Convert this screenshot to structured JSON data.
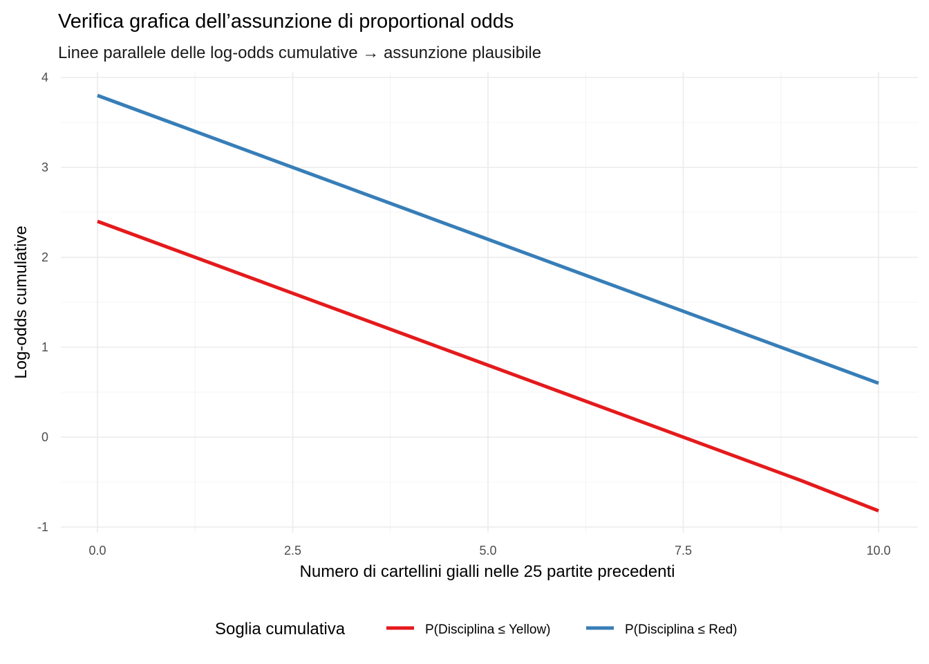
{
  "chart_data": {
    "type": "line",
    "title": "Verifica grafica dell’assunzione di proportional odds",
    "subtitle": "Linee parallele delle log-odds cumulative → assunzione plausibile",
    "xlabel": "Numero di cartellini gialli nelle 25 partite precedenti",
    "ylabel": "Log-odds cumulative",
    "xlim": [
      -0.45,
      10.5
    ],
    "ylim": [
      -1.0,
      4.0
    ],
    "x_ticks": [
      0.0,
      2.5,
      5.0,
      7.5,
      10.0
    ],
    "x_tick_labels": [
      "0.0",
      "2.5",
      "5.0",
      "7.5",
      "10.0"
    ],
    "y_ticks": [
      -1,
      0,
      1,
      2,
      3,
      4
    ],
    "y_tick_labels": [
      "-1",
      "0",
      "1",
      "2",
      "3",
      "4"
    ],
    "grid": true,
    "legend": {
      "title": "Soglia cumulativa",
      "position": "bottom"
    },
    "series": [
      {
        "name": "P(Disciplina ≤ Yellow)",
        "color": "#e41a1c",
        "x": [
          0,
          1,
          2,
          3,
          4,
          5,
          6,
          7,
          8,
          9,
          10
        ],
        "y": [
          2.4,
          2.08,
          1.76,
          1.44,
          1.12,
          0.8,
          0.48,
          0.16,
          -0.16,
          -0.48,
          -0.82
        ]
      },
      {
        "name": "P(Disciplina ≤ Red)",
        "color": "#377eb8",
        "x": [
          0,
          1,
          2,
          3,
          4,
          5,
          6,
          7,
          8,
          9,
          10
        ],
        "y": [
          3.8,
          3.48,
          3.16,
          2.84,
          2.52,
          2.2,
          1.88,
          1.56,
          1.24,
          0.92,
          0.6
        ]
      }
    ]
  }
}
